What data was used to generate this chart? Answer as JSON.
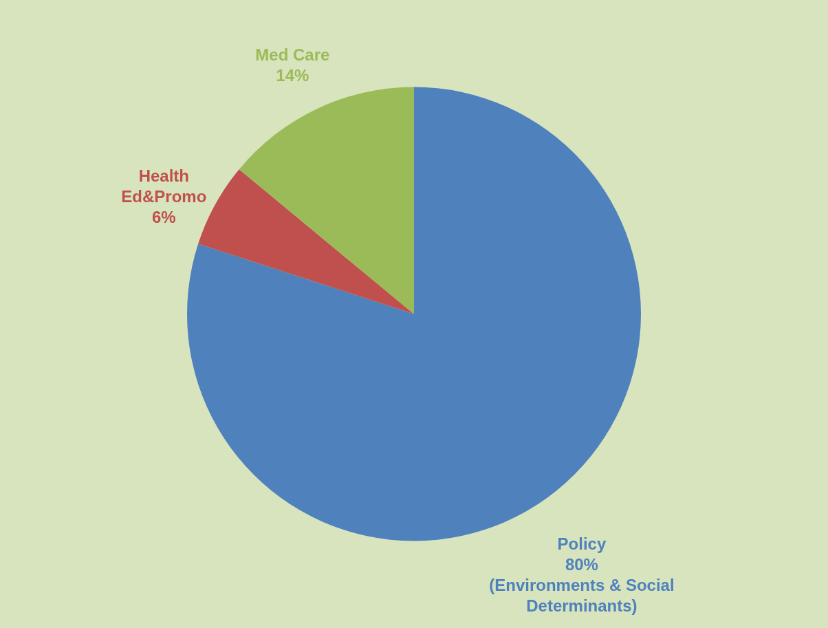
{
  "chart_data": {
    "type": "pie",
    "categories": [
      "Policy",
      "Health\nEd&Promo",
      "Med Care"
    ],
    "values": [
      80,
      6,
      14
    ],
    "colors": [
      "#4f81bd",
      "#c0504d",
      "#9bbb59"
    ],
    "value_labels": [
      "80%",
      "6%",
      "14%"
    ],
    "annotations": [
      {
        "text": "(Environments & Social\nDeterminants)",
        "x": "Policy"
      }
    ],
    "legend": false
  }
}
